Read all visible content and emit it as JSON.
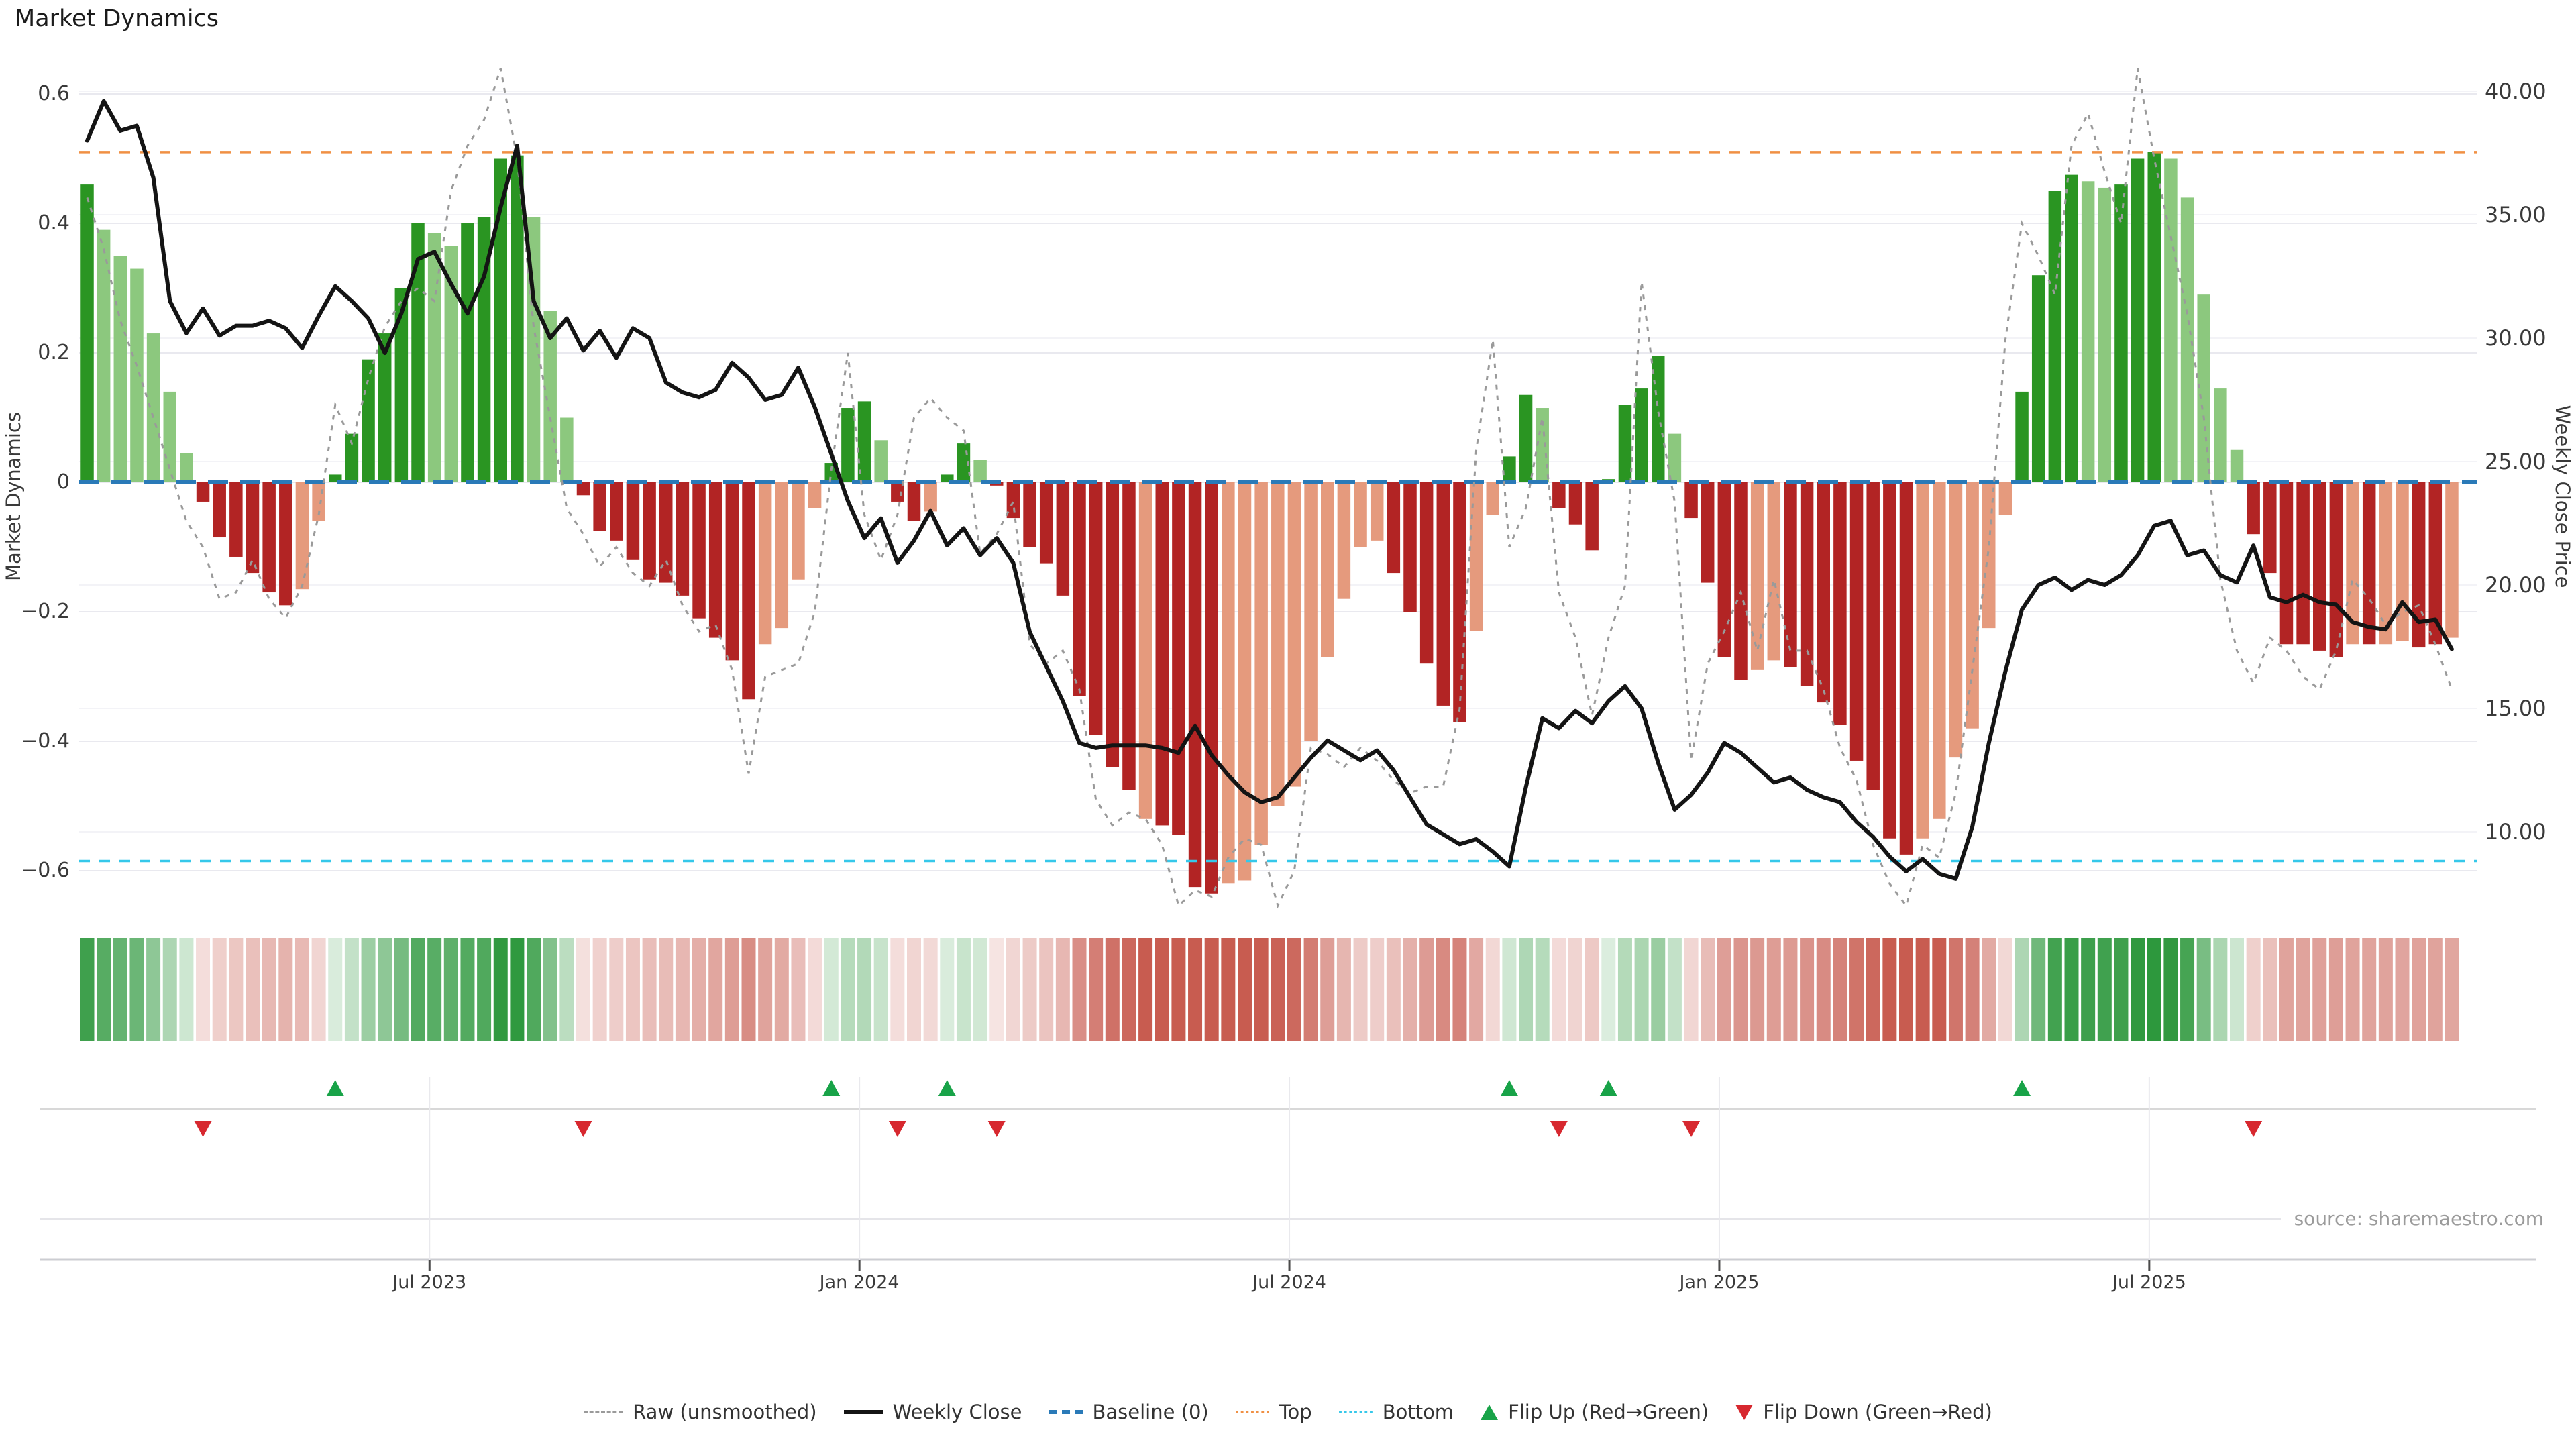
{
  "title": "Market Dynamics",
  "source": "source: sharemaestro.com",
  "axes": {
    "left": {
      "label": "Market Dynamics",
      "ticks": [
        0.6,
        0.4,
        0.2,
        0,
        -0.2,
        -0.4,
        -0.6
      ],
      "tick_labels": [
        "0.6",
        "0.4",
        "0.2",
        "0",
        "−0.2",
        "−0.4",
        "−0.6"
      ]
    },
    "right": {
      "label": "Weekly Close Price",
      "ticks": [
        40,
        35,
        30,
        25,
        20,
        15,
        10
      ],
      "tick_labels": [
        "40.00",
        "35.00",
        "30.00",
        "25.00",
        "20.00",
        "15.00",
        "10.00"
      ]
    },
    "x": {
      "labels": [
        "Jul 2023",
        "Jan 2024",
        "Jul 2024",
        "Jan 2025",
        "Jul 2025"
      ],
      "week_positions": [
        20.7,
        46.7,
        72.7,
        98.7,
        124.7
      ]
    }
  },
  "colors": {
    "bar_dark_green": "#2a9522",
    "bar_light_green": "#8cc87e",
    "bar_dark_red": "#b22424",
    "bar_salmon": "#e59a7d",
    "heat_green": "#2a963a",
    "heat_red": "#c85c50",
    "raw_line": "#9a9a9a",
    "close_line": "#141414",
    "baseline": "#2a7ab8",
    "top_line": "#f09044",
    "bottom_line": "#35c8ea",
    "flip_up": "#18a348",
    "flip_down": "#d7282f",
    "grid_major": "#e9e9ef",
    "grid_minor": "#f3f3f7"
  },
  "legend": [
    {
      "label": "Raw (unsmoothed)",
      "swatch": "raw"
    },
    {
      "label": "Weekly Close",
      "swatch": "close"
    },
    {
      "label": "Baseline (0)",
      "swatch": "baseline"
    },
    {
      "label": "Top",
      "swatch": "top"
    },
    {
      "label": "Bottom",
      "swatch": "bottom"
    },
    {
      "label": "Flip Up (Red→Green)",
      "swatch": "triup"
    },
    {
      "label": "Flip Down (Green→Red)",
      "swatch": "tridown"
    }
  ],
  "chart_data": {
    "type": "bar",
    "subtype": "weekly bars + two lines + threshold lines + heatmap strip + flip markers",
    "title": "Market Dynamics",
    "xlabel_ticks": [
      "Jul 2023",
      "Jan 2024",
      "Jul 2024",
      "Jan 2025",
      "Jul 2025"
    ],
    "ylabel_left": "Market Dynamics",
    "ylabel_right": "Weekly Close Price",
    "ylim_left": [
      -0.654,
      0.641
    ],
    "ylim_right": [
      7.5,
      41.5
    ],
    "baseline": 0,
    "top_threshold": 0.51,
    "bottom_threshold": -0.585,
    "weeks": 144,
    "series": {
      "dynamics_bars": {
        "values": [
          0.46,
          0.39,
          0.35,
          0.33,
          0.23,
          0.14,
          0.045,
          -0.03,
          -0.085,
          -0.115,
          -0.14,
          -0.17,
          -0.19,
          -0.165,
          -0.06,
          0.012,
          0.075,
          0.19,
          0.23,
          0.3,
          0.4,
          0.385,
          0.365,
          0.4,
          0.41,
          0.5,
          0.505,
          0.41,
          0.265,
          0.1,
          -0.02,
          -0.075,
          -0.09,
          -0.12,
          -0.15,
          -0.155,
          -0.175,
          -0.21,
          -0.24,
          -0.275,
          -0.335,
          -0.25,
          -0.225,
          -0.15,
          -0.04,
          0.03,
          0.115,
          0.125,
          0.065,
          -0.03,
          -0.06,
          -0.045,
          0.012,
          0.06,
          0.035,
          -0.005,
          -0.055,
          -0.1,
          -0.125,
          -0.175,
          -0.33,
          -0.39,
          -0.44,
          -0.475,
          -0.52,
          -0.53,
          -0.545,
          -0.625,
          -0.635,
          -0.62,
          -0.615,
          -0.56,
          -0.5,
          -0.47,
          -0.4,
          -0.27,
          -0.18,
          -0.1,
          -0.09,
          -0.14,
          -0.2,
          -0.28,
          -0.345,
          -0.37,
          -0.23,
          -0.05,
          0.04,
          0.135,
          0.115,
          -0.04,
          -0.065,
          -0.105,
          0.005,
          0.12,
          0.145,
          0.195,
          0.075,
          -0.055,
          -0.155,
          -0.27,
          -0.305,
          -0.29,
          -0.275,
          -0.285,
          -0.315,
          -0.34,
          -0.375,
          -0.43,
          -0.475,
          -0.55,
          -0.575,
          -0.55,
          -0.52,
          -0.425,
          -0.38,
          -0.225,
          -0.05,
          0.14,
          0.32,
          0.45,
          0.475,
          0.465,
          0.455,
          0.46,
          0.5,
          0.51,
          0.5,
          0.44,
          0.29,
          0.145,
          0.05,
          -0.08,
          -0.14,
          -0.25,
          -0.25,
          -0.26,
          -0.27,
          -0.25,
          -0.25,
          -0.25,
          -0.245,
          -0.255,
          -0.25,
          -0.24
        ],
        "shades": "dllllllrrrrrrssddddddllddddlllrrrrrrrrrrrssssdddlrrsddlrrrrrrrrrsrrrrssssssssssrrrrrssddlrrrddddlrrrrssrrrrrrrrssssssddddlldddlllllrrrrrrsrssrrs"
      },
      "weekly_close": {
        "values": [
          38.0,
          39.6,
          38.4,
          38.6,
          36.5,
          31.5,
          30.2,
          31.2,
          30.1,
          30.5,
          30.5,
          30.7,
          30.4,
          29.6,
          30.9,
          32.1,
          31.5,
          30.8,
          29.4,
          31.0,
          33.2,
          33.5,
          32.2,
          31.0,
          32.5,
          35.3,
          37.8,
          31.5,
          30.0,
          30.8,
          29.5,
          30.3,
          29.2,
          30.4,
          30.0,
          28.2,
          27.8,
          27.6,
          27.9,
          29.0,
          28.4,
          27.5,
          27.7,
          28.8,
          27.2,
          25.3,
          23.4,
          21.9,
          22.7,
          20.9,
          21.8,
          23.0,
          21.6,
          22.3,
          21.2,
          21.9,
          20.9,
          18.1,
          16.7,
          15.3,
          13.6,
          13.4,
          13.5,
          13.5,
          13.5,
          13.4,
          13.2,
          14.3,
          13.1,
          12.3,
          11.6,
          11.2,
          11.4,
          12.2,
          13.0,
          13.7,
          13.3,
          12.9,
          13.3,
          12.5,
          11.4,
          10.3,
          9.9,
          9.5,
          9.7,
          9.2,
          8.6,
          11.8,
          14.6,
          14.2,
          14.9,
          14.4,
          15.3,
          15.9,
          15.0,
          12.8,
          10.9,
          11.5,
          12.4,
          13.6,
          13.2,
          12.6,
          12.0,
          12.2,
          11.7,
          11.4,
          11.2,
          10.4,
          9.8,
          9.0,
          8.4,
          8.9,
          8.3,
          8.1,
          10.2,
          13.6,
          16.5,
          19.0,
          20.0,
          20.3,
          19.8,
          20.2,
          20.0,
          20.4,
          21.2,
          22.4,
          22.6,
          21.2,
          21.4,
          20.4,
          20.1,
          21.6,
          19.5,
          19.3,
          19.6,
          19.3,
          19.2,
          18.5,
          18.3,
          18.2,
          19.3,
          18.5,
          18.6,
          17.4
        ]
      },
      "raw_unsmoothed": {
        "values": [
          0.44,
          0.36,
          0.25,
          0.18,
          0.1,
          0.02,
          -0.06,
          -0.1,
          -0.18,
          -0.17,
          -0.12,
          -0.18,
          -0.21,
          -0.16,
          -0.05,
          0.12,
          0.06,
          0.16,
          0.24,
          0.28,
          0.3,
          0.28,
          0.45,
          0.52,
          0.56,
          0.64,
          0.5,
          0.24,
          0.1,
          -0.04,
          -0.08,
          -0.13,
          -0.1,
          -0.14,
          -0.16,
          -0.12,
          -0.19,
          -0.23,
          -0.22,
          -0.29,
          -0.45,
          -0.3,
          -0.29,
          -0.28,
          -0.2,
          0.02,
          0.2,
          -0.05,
          -0.12,
          -0.05,
          0.1,
          0.13,
          0.1,
          0.08,
          -0.11,
          -0.08,
          -0.03,
          -0.25,
          -0.28,
          -0.26,
          -0.32,
          -0.49,
          -0.53,
          -0.51,
          -0.52,
          -0.56,
          -0.7,
          -0.63,
          -0.64,
          -0.58,
          -0.55,
          -0.56,
          -0.75,
          -0.6,
          -0.41,
          -0.42,
          -0.44,
          -0.41,
          -0.43,
          -0.46,
          -0.48,
          -0.47,
          -0.47,
          -0.35,
          0.05,
          0.22,
          -0.1,
          -0.04,
          0.1,
          -0.17,
          -0.24,
          -0.36,
          -0.24,
          -0.16,
          0.31,
          0.11,
          -0.03,
          -0.43,
          -0.28,
          -0.23,
          -0.17,
          -0.26,
          -0.15,
          -0.26,
          -0.26,
          -0.32,
          -0.41,
          -0.46,
          -0.56,
          -0.62,
          -0.67,
          -0.56,
          -0.58,
          -0.48,
          -0.29,
          -0.1,
          0.22,
          0.4,
          0.35,
          0.29,
          0.52,
          0.57,
          0.48,
          0.4,
          0.64,
          0.5,
          0.38,
          0.26,
          0.1,
          -0.15,
          -0.26,
          -0.31,
          -0.24,
          -0.26,
          -0.3,
          -0.32,
          -0.26,
          -0.15,
          -0.18,
          -0.22,
          -0.2,
          -0.19,
          -0.25,
          -0.32
        ]
      }
    },
    "flip_up_weeks": [
      15,
      45,
      52,
      86,
      92,
      117
    ],
    "flip_down_weeks": [
      7,
      30,
      49,
      55,
      89,
      97,
      131
    ],
    "heatmap": "one cell per week; color sign and intensity mirror dynamics_bars values",
    "legend_position": "bottom center",
    "grid": "horizontal only in main panel; vertical month lines in lower panels"
  }
}
